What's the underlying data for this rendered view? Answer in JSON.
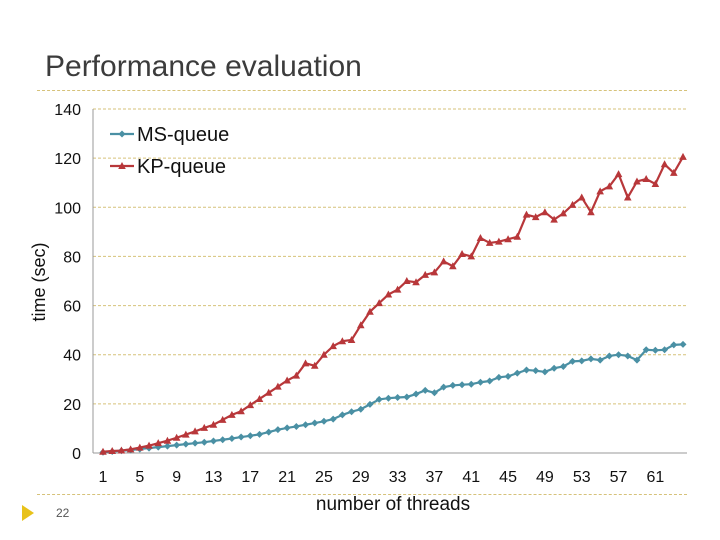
{
  "slide": {
    "title": "Performance evaluation",
    "number": "22"
  },
  "colors": {
    "ms": "#4a90a4",
    "kp": "#b8373a",
    "accent": "#e8c21a",
    "divider": "#d6c27a"
  },
  "chart_data": {
    "type": "line",
    "title": "",
    "xlabel": "number of threads",
    "ylabel": "time (sec)",
    "ylim": [
      0,
      140
    ],
    "yticks": [
      0,
      20,
      40,
      60,
      80,
      100,
      120,
      140
    ],
    "xticks": [
      1,
      5,
      9,
      13,
      17,
      21,
      25,
      29,
      33,
      37,
      41,
      45,
      49,
      53,
      57,
      61
    ],
    "legend_position": "top-left",
    "x": [
      1,
      2,
      3,
      4,
      5,
      6,
      7,
      8,
      9,
      10,
      11,
      12,
      13,
      14,
      15,
      16,
      17,
      18,
      19,
      20,
      21,
      22,
      23,
      24,
      25,
      26,
      27,
      28,
      29,
      30,
      31,
      32,
      33,
      34,
      35,
      36,
      37,
      38,
      39,
      40,
      41,
      42,
      43,
      44,
      45,
      46,
      47,
      48,
      49,
      50,
      51,
      52,
      53,
      54,
      55,
      56,
      57,
      58,
      59,
      60,
      61,
      62,
      63,
      64
    ],
    "series": [
      {
        "name": "MS-queue",
        "marker": "diamond",
        "values": [
          0.3,
          0.6,
          0.9,
          1.2,
          1.6,
          2.0,
          2.4,
          2.8,
          3.2,
          3.6,
          4.0,
          4.4,
          4.9,
          5.4,
          5.9,
          6.5,
          7.0,
          7.6,
          8.5,
          9.5,
          10.2,
          10.8,
          11.5,
          12.2,
          12.9,
          13.8,
          15.5,
          16.8,
          17.8,
          19.8,
          21.8,
          22.3,
          22.6,
          22.8,
          24.0,
          25.5,
          24.5,
          26.8,
          27.5,
          27.8,
          28.0,
          28.8,
          29.3,
          30.8,
          31.2,
          32.5,
          33.8,
          33.5,
          33.0,
          34.5,
          35.2,
          37.3,
          37.5,
          38.3,
          37.8,
          39.5,
          40.0,
          39.5,
          37.8,
          42.0,
          41.8,
          42.0,
          44.0,
          44.2
        ]
      },
      {
        "name": "KP-queue",
        "marker": "triangle",
        "values": [
          0.5,
          0.8,
          1.0,
          1.5,
          2.2,
          3.0,
          4.0,
          5.0,
          6.2,
          7.5,
          8.8,
          10.2,
          11.5,
          13.5,
          15.5,
          17.0,
          19.5,
          22.0,
          24.5,
          27.0,
          29.5,
          31.5,
          36.5,
          35.5,
          40.0,
          43.5,
          45.5,
          46.0,
          52.0,
          57.5,
          61.0,
          64.5,
          66.5,
          70.0,
          69.5,
          72.5,
          73.5,
          78.0,
          76.0,
          81.0,
          80.0,
          87.5,
          85.5,
          86.0,
          87.0,
          88.0,
          97.0,
          96.0,
          98.0,
          95.0,
          97.5,
          101.0,
          104.0,
          98.0,
          106.5,
          108.5,
          113.5,
          104.0,
          110.5,
          111.5,
          109.5,
          117.5,
          114.0,
          120.5
        ]
      }
    ]
  }
}
